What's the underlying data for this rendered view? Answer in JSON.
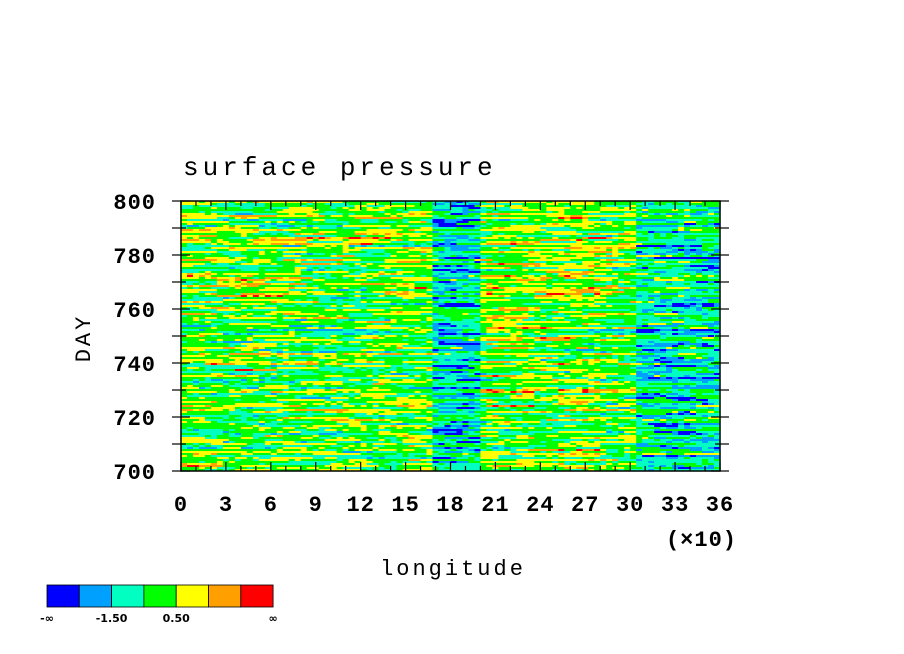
{
  "chart_data": {
    "type": "heatmap",
    "title": "surface pressure",
    "xlabel": "longitude",
    "ylabel": "DAY",
    "x_scale_note": "(×10)",
    "xlim": [
      0,
      36
    ],
    "ylim": [
      700,
      800
    ],
    "x_ticks": [
      "0",
      "3",
      "6",
      "9",
      "12",
      "15",
      "18",
      "21",
      "24",
      "27",
      "30",
      "33",
      "36"
    ],
    "y_ticks": [
      "700",
      "720",
      "740",
      "760",
      "780",
      "800"
    ],
    "colorbar": {
      "colors": [
        "#0000ff",
        "#00a0ff",
        "#00ffc0",
        "#00ff00",
        "#ffff00",
        "#ffa000",
        "#ff0000"
      ],
      "labels": [
        "-∞",
        "-1.50",
        "0.50",
        "∞"
      ]
    }
  }
}
